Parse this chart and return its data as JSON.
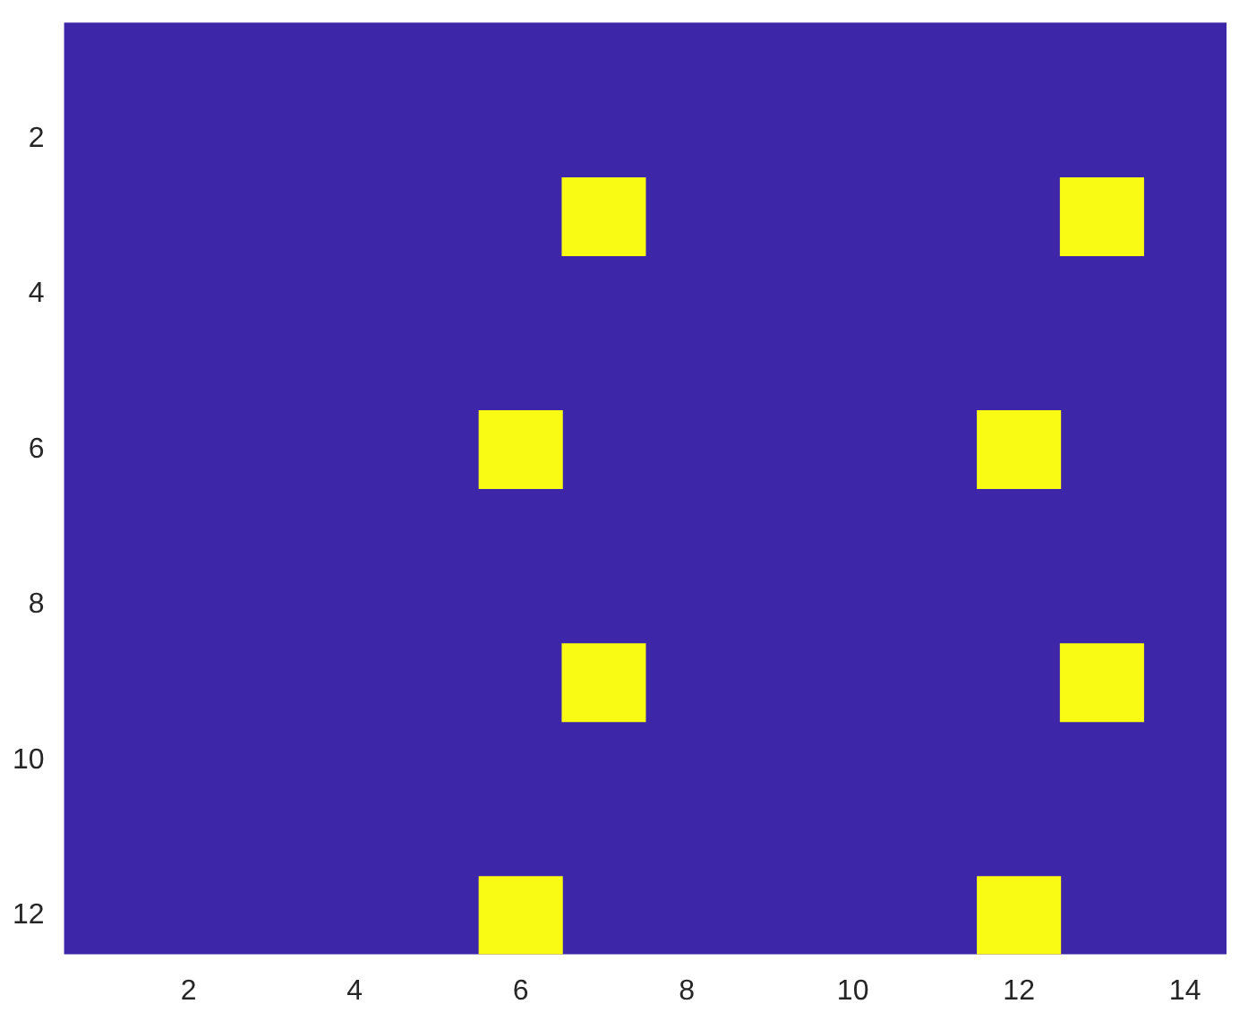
{
  "chart_data": {
    "type": "bar",
    "xlim": [
      0.5,
      14.5
    ],
    "xticks": [
      2,
      4,
      6,
      8,
      10,
      12,
      14
    ],
    "ylim": [
      12.5,
      0.5
    ],
    "yticks": [
      2,
      4,
      6,
      8,
      10,
      12
    ],
    "series": [
      {
        "color": "#f9fb15",
        "x": [
          6,
          7,
          12,
          13
        ],
        "values": [
          1,
          1,
          1,
          1
        ],
        "base": [
          5.5,
          2.5,
          5.5,
          2.5
        ]
      },
      {
        "color": "#f9fb15",
        "x": [
          6,
          7,
          12,
          13
        ],
        "values": [
          1,
          1,
          1,
          1
        ],
        "base": [
          11.5,
          8.5,
          11.5,
          8.5
        ]
      }
    ]
  }
}
